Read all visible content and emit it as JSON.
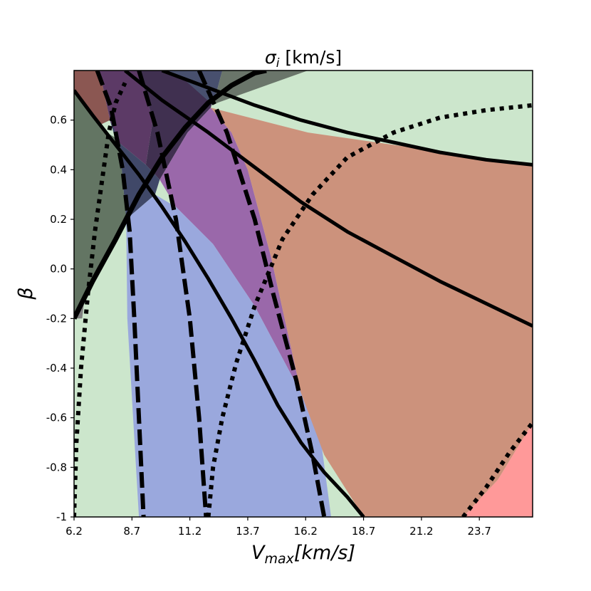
{
  "chart_data": {
    "type": "area",
    "title": {
      "base": "σ",
      "sub": "i",
      "rest": " [km/s]"
    },
    "xlabel": {
      "base": "V",
      "sub": "max",
      "rest": "[km/s]"
    },
    "ylabel": "β",
    "xlim": [
      6.2,
      26.0
    ],
    "ylim": [
      -1.0,
      0.8
    ],
    "xticks": [
      6.2,
      8.7,
      11.2,
      13.7,
      16.2,
      18.7,
      21.2,
      23.7
    ],
    "xtick_labels": [
      "6.2",
      "8.7",
      "11.2",
      "13.7",
      "16.2",
      "18.7",
      "21.2",
      "23.7"
    ],
    "yticks": [
      0.6,
      0.4,
      0.2,
      0.0,
      -0.2,
      -0.4,
      -0.6,
      -0.8,
      -1.0
    ],
    "ytick_labels": [
      "0.6",
      "0.4",
      "0.2",
      "0.0",
      "-0.2",
      "-0.4",
      "-0.6",
      "-0.8",
      "-1"
    ],
    "grid": false,
    "background_color": "#cce6cc",
    "regions": [
      {
        "color": "#808080",
        "points": [
          [
            6.2,
            0.72
          ],
          [
            7.3,
            0.58
          ],
          [
            7.8,
            0.51
          ],
          [
            7.3,
            0.28
          ],
          [
            6.8,
            0.0
          ],
          [
            6.55,
            -0.2
          ],
          [
            6.2,
            -0.2
          ]
        ]
      },
      {
        "color": "#637563",
        "points": [
          [
            6.2,
            0.72
          ],
          [
            7.6,
            0.55
          ],
          [
            8.15,
            0.52
          ],
          [
            8.45,
            0.2
          ],
          [
            7.9,
            0.12
          ],
          [
            7.2,
            0.0
          ],
          [
            6.2,
            -0.2
          ]
        ]
      },
      {
        "color": "#8b5752",
        "points": [
          [
            6.2,
            0.8
          ],
          [
            7.3,
            0.8
          ],
          [
            7.75,
            0.6
          ],
          [
            7.3,
            0.58
          ],
          [
            6.2,
            0.72
          ]
        ]
      },
      {
        "color": "#5c3a66",
        "points": [
          [
            7.3,
            0.8
          ],
          [
            9.0,
            0.8
          ],
          [
            9.6,
            0.6
          ],
          [
            9.3,
            0.42
          ],
          [
            8.0,
            0.52
          ],
          [
            7.75,
            0.6
          ]
        ]
      },
      {
        "color": "#403050",
        "points": [
          [
            9.0,
            0.8
          ],
          [
            12.6,
            0.8
          ],
          [
            12.1,
            0.65
          ],
          [
            11.1,
            0.55
          ],
          [
            9.9,
            0.36
          ],
          [
            9.3,
            0.42
          ],
          [
            9.6,
            0.6
          ]
        ]
      },
      {
        "color": "#48506e",
        "points": [
          [
            10.0,
            0.8
          ],
          [
            12.6,
            0.8
          ],
          [
            12.2,
            0.66
          ],
          [
            11.0,
            0.76
          ]
        ]
      },
      {
        "color": "#6a756a",
        "points": [
          [
            12.6,
            0.8
          ],
          [
            16.3,
            0.8
          ],
          [
            12.4,
            0.67
          ],
          [
            12.2,
            0.66
          ]
        ]
      },
      {
        "color": "#404868",
        "points": [
          [
            7.75,
            0.6
          ],
          [
            8.0,
            0.52
          ],
          [
            9.3,
            0.42
          ],
          [
            9.9,
            0.36
          ],
          [
            9.7,
            0.3
          ],
          [
            8.45,
            0.2
          ],
          [
            8.15,
            0.52
          ]
        ]
      },
      {
        "color": "#9a68aa",
        "points": [
          [
            9.9,
            0.36
          ],
          [
            11.1,
            0.55
          ],
          [
            12.1,
            0.65
          ],
          [
            13.0,
            0.55
          ],
          [
            13.7,
            0.4
          ],
          [
            14.7,
            0.05
          ],
          [
            16.0,
            -0.5
          ],
          [
            14.0,
            -0.15
          ],
          [
            12.2,
            0.1
          ],
          [
            10.6,
            0.25
          ]
        ]
      },
      {
        "color": "#9aa8dd",
        "points": [
          [
            8.45,
            0.2
          ],
          [
            9.7,
            0.3
          ],
          [
            10.6,
            0.25
          ],
          [
            12.2,
            0.1
          ],
          [
            14.0,
            -0.15
          ],
          [
            16.0,
            -0.5
          ],
          [
            16.8,
            -0.65
          ],
          [
            17.3,
            -1.0
          ],
          [
            9.0,
            -1.0
          ],
          [
            8.5,
            -0.2
          ]
        ]
      },
      {
        "color": "#cc927c",
        "points": [
          [
            12.1,
            0.65
          ],
          [
            16.3,
            0.55
          ],
          [
            26.0,
            0.42
          ],
          [
            26.0,
            -0.62
          ],
          [
            24.5,
            -0.85
          ],
          [
            23.0,
            -1.0
          ],
          [
            18.7,
            -1.0
          ],
          [
            17.0,
            -0.75
          ],
          [
            16.0,
            -0.5
          ],
          [
            14.7,
            0.05
          ],
          [
            13.7,
            0.4
          ],
          [
            13.0,
            0.55
          ]
        ]
      },
      {
        "color": "#ff9999",
        "points": [
          [
            26.0,
            -0.62
          ],
          [
            24.5,
            -0.85
          ],
          [
            23.0,
            -1.0
          ],
          [
            26.0,
            -1.0
          ]
        ]
      }
    ],
    "curves": [
      {
        "style": "solid",
        "width": 7,
        "points": [
          [
            6.2,
            -0.2
          ],
          [
            7.0,
            -0.05
          ],
          [
            8.0,
            0.12
          ],
          [
            9.0,
            0.3
          ],
          [
            10.0,
            0.45
          ],
          [
            11.0,
            0.57
          ],
          [
            12.0,
            0.67
          ],
          [
            13.0,
            0.74
          ],
          [
            14.0,
            0.79
          ],
          [
            14.5,
            0.8
          ]
        ]
      },
      {
        "style": "solid",
        "width": 5,
        "points": [
          [
            6.2,
            0.72
          ],
          [
            7.0,
            0.62
          ],
          [
            8.0,
            0.5
          ],
          [
            9.0,
            0.38
          ],
          [
            10.0,
            0.25
          ],
          [
            11.0,
            0.11
          ],
          [
            12.0,
            -0.04
          ],
          [
            13.0,
            -0.2
          ],
          [
            14.0,
            -0.37
          ],
          [
            15.0,
            -0.55
          ],
          [
            16.0,
            -0.7
          ],
          [
            17.0,
            -0.82
          ],
          [
            18.0,
            -0.92
          ],
          [
            18.7,
            -1.0
          ]
        ]
      },
      {
        "style": "solid",
        "width": 5,
        "points": [
          [
            8.4,
            0.8
          ],
          [
            10.0,
            0.68
          ],
          [
            12.0,
            0.55
          ],
          [
            14.0,
            0.41
          ],
          [
            16.0,
            0.27
          ],
          [
            18.0,
            0.15
          ],
          [
            20.0,
            0.05
          ],
          [
            22.0,
            -0.05
          ],
          [
            24.0,
            -0.14
          ],
          [
            26.0,
            -0.23
          ]
        ]
      },
      {
        "style": "solid",
        "width": 5,
        "points": [
          [
            10.0,
            0.8
          ],
          [
            12.0,
            0.73
          ],
          [
            14.0,
            0.66
          ],
          [
            16.0,
            0.6
          ],
          [
            18.0,
            0.55
          ],
          [
            20.0,
            0.51
          ],
          [
            22.0,
            0.47
          ],
          [
            24.0,
            0.44
          ],
          [
            26.0,
            0.42
          ]
        ]
      },
      {
        "style": "dashed",
        "width": 6,
        "points": [
          [
            7.2,
            0.8
          ],
          [
            7.8,
            0.65
          ],
          [
            8.3,
            0.4
          ],
          [
            8.6,
            0.15
          ],
          [
            8.8,
            -0.2
          ],
          [
            9.0,
            -0.6
          ],
          [
            9.2,
            -1.0
          ]
        ]
      },
      {
        "style": "dashed",
        "width": 6,
        "points": [
          [
            9.0,
            0.8
          ],
          [
            9.8,
            0.55
          ],
          [
            10.6,
            0.2
          ],
          [
            11.2,
            -0.2
          ],
          [
            11.6,
            -0.6
          ],
          [
            11.9,
            -1.0
          ]
        ]
      },
      {
        "style": "dashed",
        "width": 6,
        "points": [
          [
            11.6,
            0.8
          ],
          [
            12.8,
            0.55
          ],
          [
            14.0,
            0.2
          ],
          [
            14.8,
            -0.1
          ],
          [
            15.8,
            -0.45
          ],
          [
            16.5,
            -0.75
          ],
          [
            17.0,
            -1.0
          ]
        ]
      },
      {
        "style": "dotted",
        "width": 6,
        "points": [
          [
            6.2,
            -1.0
          ],
          [
            6.3,
            -0.7
          ],
          [
            6.5,
            -0.4
          ],
          [
            6.8,
            -0.1
          ],
          [
            7.1,
            0.15
          ],
          [
            7.4,
            0.35
          ],
          [
            7.7,
            0.55
          ],
          [
            8.0,
            0.67
          ],
          [
            8.4,
            0.75
          ]
        ]
      },
      {
        "style": "dotted",
        "width": 6,
        "points": [
          [
            12.0,
            -1.0
          ],
          [
            12.2,
            -0.8
          ],
          [
            12.6,
            -0.6
          ],
          [
            13.2,
            -0.38
          ],
          [
            14.0,
            -0.15
          ],
          [
            15.2,
            0.12
          ],
          [
            16.5,
            0.3
          ],
          [
            18.0,
            0.45
          ],
          [
            20.0,
            0.55
          ],
          [
            22.0,
            0.61
          ],
          [
            24.0,
            0.64
          ],
          [
            26.0,
            0.66
          ]
        ]
      },
      {
        "style": "dotted",
        "width": 6,
        "points": [
          [
            23.0,
            -1.0
          ],
          [
            24.0,
            -0.88
          ],
          [
            25.0,
            -0.74
          ],
          [
            26.0,
            -0.62
          ]
        ]
      }
    ]
  }
}
